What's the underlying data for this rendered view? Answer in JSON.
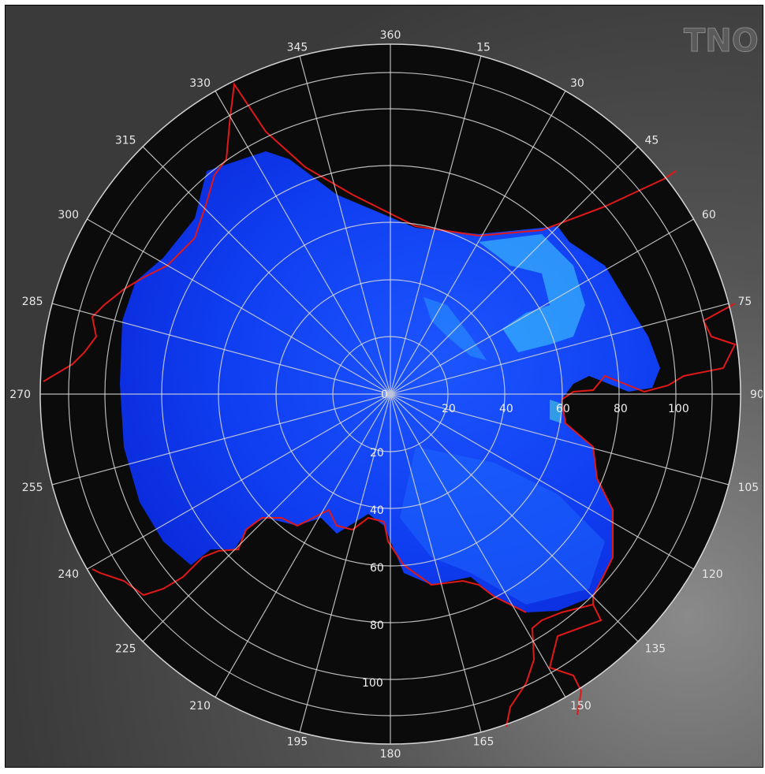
{
  "logo": {
    "text": "TNO"
  },
  "azimuth_labels": [
    "360",
    "15",
    "30",
    "45",
    "60",
    "75",
    "90",
    "105",
    "120",
    "135",
    "150",
    "165",
    "180",
    "195",
    "210",
    "225",
    "240",
    "255",
    "270",
    "285",
    "300",
    "315",
    "330",
    "345"
  ],
  "range_labels_east": [
    "20",
    "40",
    "60",
    "80",
    "100"
  ],
  "range_labels_south": [
    "20",
    "40",
    "60",
    "80",
    "100"
  ],
  "center_label": "0",
  "colors": {
    "background": "#4a4a4a",
    "disc": "#0b0b0b",
    "grid": "#d8d8d8",
    "echo_low": "#0a2cff",
    "echo_high": "#6fffe0",
    "border": "#e01818"
  }
}
